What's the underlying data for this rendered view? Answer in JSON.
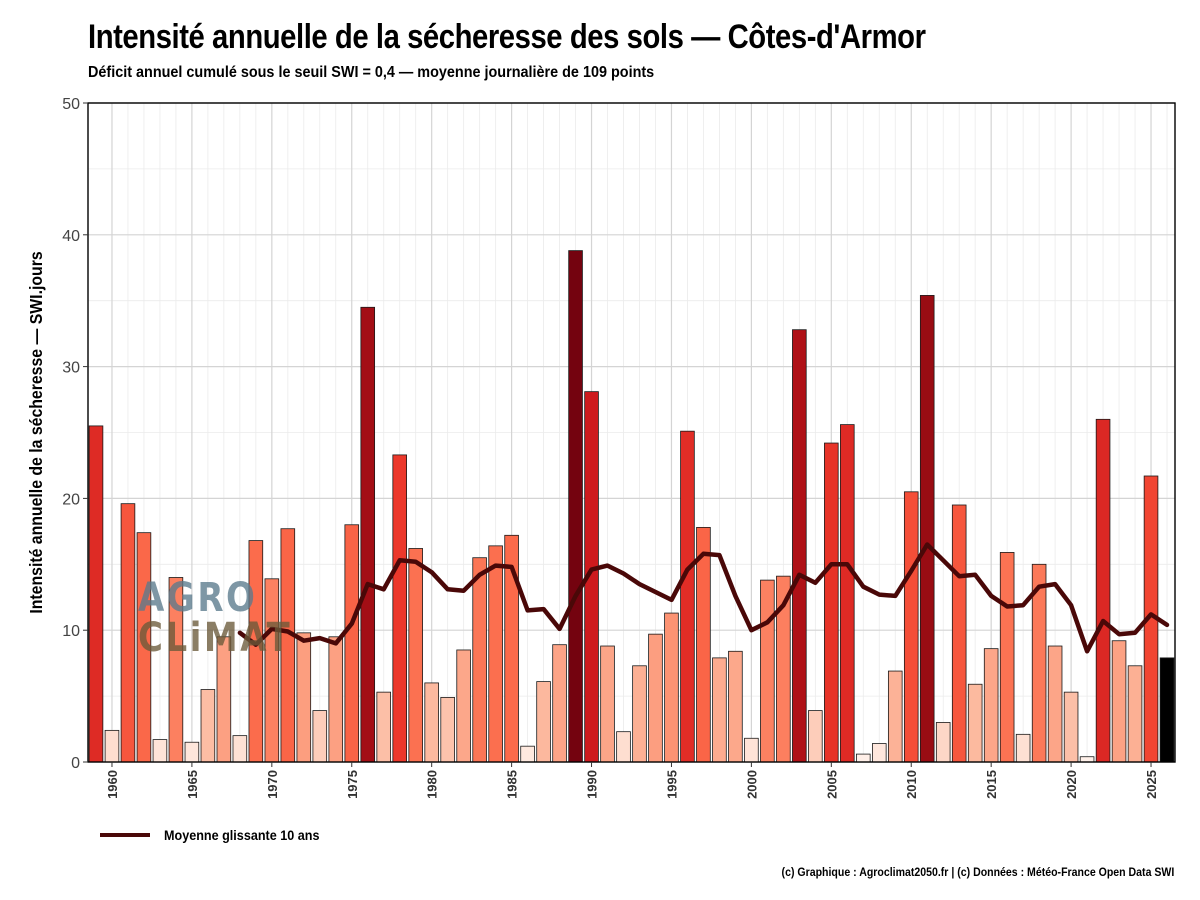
{
  "title": "Intensité annuelle de la sécheresse des sols — Côtes-d'Armor",
  "subtitle": "Déficit annuel cumulé sous le seuil SWI = 0,4 — moyenne journalière de 109 points",
  "caption": "(c) Graphique : Agroclimat2050.fr | (c) Données : Météo-France Open Data SWI",
  "logo": {
    "top": "AGRO",
    "bottom": "CLiMAT"
  },
  "legend": {
    "line_label": "Moyenne glissante 10 ans",
    "line_color": "#4a0808"
  },
  "chart_data": {
    "type": "bar",
    "ylabel": "Intensité annuelle de la sécheresse — SWI.jours",
    "xlabel": "",
    "ylim": [
      0,
      50
    ],
    "xlim": [
      1958.5,
      2026.5
    ],
    "yticks": [
      0,
      10,
      20,
      30,
      40,
      50
    ],
    "xticks": [
      1960,
      1965,
      1970,
      1975,
      1980,
      1985,
      1990,
      1995,
      2000,
      2005,
      2010,
      2015,
      2020,
      2025
    ],
    "grid": true,
    "legend_position": "bottom-left",
    "years": [
      1959,
      1960,
      1961,
      1962,
      1963,
      1964,
      1965,
      1966,
      1967,
      1968,
      1969,
      1970,
      1971,
      1972,
      1973,
      1974,
      1975,
      1976,
      1977,
      1978,
      1979,
      1980,
      1981,
      1982,
      1983,
      1984,
      1985,
      1986,
      1987,
      1988,
      1989,
      1990,
      1991,
      1992,
      1993,
      1994,
      1995,
      1996,
      1997,
      1998,
      1999,
      2000,
      2001,
      2002,
      2003,
      2004,
      2005,
      2006,
      2007,
      2008,
      2009,
      2010,
      2011,
      2012,
      2013,
      2014,
      2015,
      2016,
      2017,
      2018,
      2019,
      2020,
      2021,
      2022,
      2023,
      2024,
      2025,
      2026
    ],
    "values": [
      25.5,
      2.4,
      19.6,
      17.4,
      1.7,
      14.0,
      1.5,
      5.5,
      9.5,
      2.0,
      16.8,
      13.9,
      17.7,
      9.8,
      3.9,
      9.5,
      18.0,
      34.5,
      5.3,
      23.3,
      16.2,
      6.0,
      4.9,
      8.5,
      15.5,
      16.4,
      17.2,
      1.2,
      6.1,
      8.9,
      38.8,
      28.1,
      8.8,
      2.3,
      7.3,
      9.7,
      11.3,
      25.1,
      17.8,
      7.9,
      8.4,
      1.8,
      13.8,
      14.1,
      32.8,
      3.9,
      24.2,
      25.6,
      0.6,
      1.4,
      6.9,
      20.5,
      35.4,
      3.0,
      19.5,
      5.9,
      8.6,
      15.9,
      2.1,
      15.0,
      8.8,
      5.3,
      0.4,
      26.0,
      9.2,
      7.3,
      21.7,
      7.9
    ],
    "highlight_last_year": 2026,
    "highlight_color": "#000000",
    "color_scale": [
      "#fff5f0",
      "#fcbba1",
      "#fc9272",
      "#fb6a4a",
      "#ef3b2c",
      "#cb181d",
      "#a50f15",
      "#67000d"
    ],
    "series": [
      {
        "name": "Moyenne glissante 10 ans",
        "type": "line",
        "x": [
          1968,
          1969,
          1970,
          1971,
          1972,
          1973,
          1974,
          1975,
          1976,
          1977,
          1978,
          1979,
          1980,
          1981,
          1982,
          1983,
          1984,
          1985,
          1986,
          1987,
          1988,
          1989,
          1990,
          1991,
          1992,
          1993,
          1994,
          1995,
          1996,
          1997,
          1998,
          1999,
          2000,
          2001,
          2002,
          2003,
          2004,
          2005,
          2006,
          2007,
          2008,
          2009,
          2010,
          2011,
          2012,
          2013,
          2014,
          2015,
          2016,
          2017,
          2018,
          2019,
          2020,
          2021,
          2022,
          2023,
          2024,
          2025,
          2026
        ],
        "y": [
          9.8,
          8.9,
          10.1,
          9.9,
          9.2,
          9.4,
          9.0,
          10.5,
          13.5,
          13.1,
          15.3,
          15.2,
          14.4,
          13.1,
          13.0,
          14.2,
          14.9,
          14.8,
          11.5,
          11.6,
          10.1,
          12.6,
          14.6,
          14.9,
          14.3,
          13.5,
          12.9,
          12.3,
          14.6,
          15.8,
          15.7,
          12.6,
          10.0,
          10.6,
          11.9,
          14.2,
          13.6,
          15.0,
          15.0,
          13.3,
          12.7,
          12.6,
          14.5,
          16.5,
          15.3,
          14.1,
          14.2,
          12.6,
          11.8,
          11.9,
          13.3,
          13.5,
          11.9,
          8.4,
          10.7,
          9.7,
          9.8,
          11.2,
          10.4
        ]
      }
    ]
  }
}
